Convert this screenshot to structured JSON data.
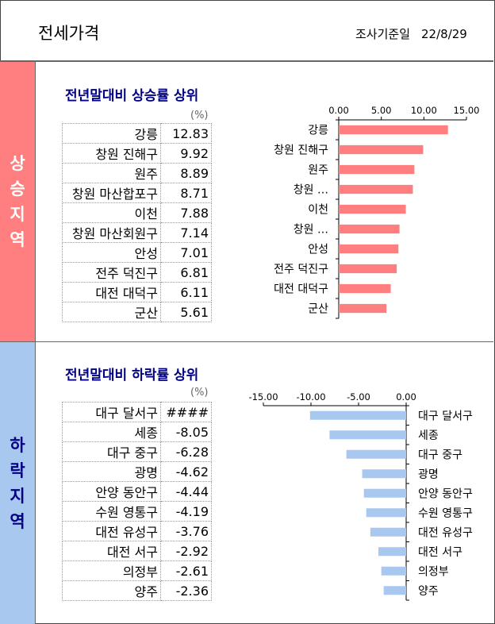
{
  "header": {
    "title": "전세가격",
    "survey_label": "조사기준일",
    "survey_date": "22/8/29"
  },
  "rise": {
    "side_label": [
      "상",
      "승",
      "지",
      "역"
    ],
    "section_title": "전년말대비 상승률 상위",
    "unit_label": "(%)",
    "table": [
      {
        "name": "강릉",
        "value": "12.83"
      },
      {
        "name": "창원 진해구",
        "value": "9.92"
      },
      {
        "name": "원주",
        "value": "8.89"
      },
      {
        "name": "창원 마산합포구",
        "value": "8.71"
      },
      {
        "name": "이천",
        "value": "7.88"
      },
      {
        "name": "창원 마산회원구",
        "value": "7.14"
      },
      {
        "name": "안성",
        "value": "7.01"
      },
      {
        "name": "전주 덕진구",
        "value": "6.81"
      },
      {
        "name": "대전 대덕구",
        "value": "6.11"
      },
      {
        "name": "군산",
        "value": "5.61"
      }
    ]
  },
  "fall": {
    "side_label": [
      "하",
      "락",
      "지",
      "역"
    ],
    "section_title": "전년말대비 하락률 상위",
    "unit_label": "(%)",
    "table": [
      {
        "name": "대구 달서구",
        "value": "####"
      },
      {
        "name": "세종",
        "value": "-8.05"
      },
      {
        "name": "대구 중구",
        "value": "-6.28"
      },
      {
        "name": "광명",
        "value": "-4.62"
      },
      {
        "name": "안양 동안구",
        "value": "-4.44"
      },
      {
        "name": "수원 영통구",
        "value": "-4.19"
      },
      {
        "name": "대전 유성구",
        "value": "-3.76"
      },
      {
        "name": "대전 서구",
        "value": "-2.92"
      },
      {
        "name": "의정부",
        "value": "-2.61"
      },
      {
        "name": "양주",
        "value": "-2.36"
      }
    ]
  },
  "chart_data": [
    {
      "type": "bar",
      "orientation": "horizontal",
      "color": "#ff7f80",
      "categories": [
        "강릉",
        "창원 진해구",
        "원주",
        "창원 …",
        "이천",
        "창원 …",
        "안성",
        "전주 덕진구",
        "대전 대덕구",
        "군산"
      ],
      "values": [
        12.83,
        9.92,
        8.89,
        8.71,
        7.88,
        7.14,
        7.01,
        6.81,
        6.11,
        5.61
      ],
      "xlim": [
        0,
        15
      ],
      "xticks": [
        "0.00",
        "5.00",
        "10.00",
        "15.00"
      ],
      "axis_position": "top"
    },
    {
      "type": "bar",
      "orientation": "horizontal",
      "color": "#a9c8ef",
      "categories": [
        "대구 달서구",
        "세종",
        "대구 중구",
        "광명",
        "안양 동안구",
        "수원 영통구",
        "대전 유성구",
        "대전 서구",
        "의정부",
        "양주"
      ],
      "values": [
        -10.1,
        -8.05,
        -6.28,
        -4.62,
        -4.44,
        -4.19,
        -3.76,
        -2.92,
        -2.61,
        -2.36
      ],
      "xlim": [
        -15,
        0
      ],
      "xticks": [
        "-15.00",
        "-10.00",
        "-5.00",
        "0.00"
      ],
      "axis_position": "top"
    }
  ]
}
